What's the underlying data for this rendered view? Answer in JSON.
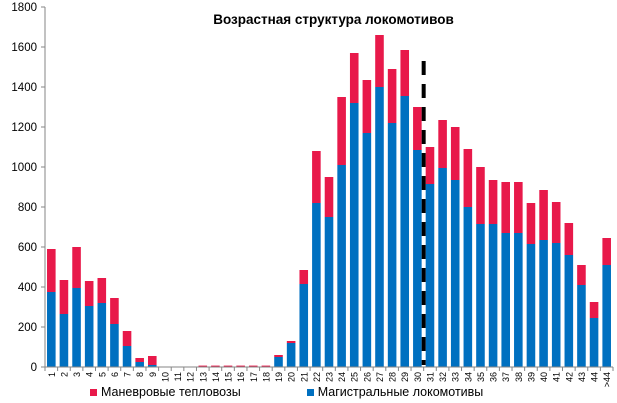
{
  "chart_data": {
    "type": "bar",
    "stacked": true,
    "title": "Возрастная структура локомотивов",
    "xlabel": "",
    "ylabel": "",
    "ylim": [
      0,
      1800
    ],
    "yticks": [
      0,
      200,
      400,
      600,
      800,
      1000,
      1200,
      1400,
      1600,
      1800
    ],
    "grid": false,
    "legend_position": "bottom",
    "categories": [
      "1",
      "2",
      "3",
      "4",
      "5",
      "6",
      "7",
      "8",
      "9",
      "10",
      "11",
      "12",
      "13",
      "14",
      "15",
      "16",
      "17",
      "18",
      "19",
      "20",
      "21",
      "22",
      "23",
      "24",
      "25",
      "26",
      "27",
      "28",
      "29",
      "30",
      "31",
      "32",
      "33",
      "34",
      "35",
      "36",
      "37",
      "38",
      "39",
      "40",
      "41",
      "42",
      "43",
      "44",
      ">44"
    ],
    "series": [
      {
        "name": "Магистральные локомотивы",
        "color": "#0070C0",
        "values": [
          375,
          265,
          395,
          305,
          320,
          215,
          105,
          25,
          10,
          2,
          0,
          0,
          2,
          2,
          2,
          2,
          2,
          2,
          50,
          120,
          415,
          820,
          750,
          1010,
          1320,
          1170,
          1400,
          1220,
          1355,
          1085,
          915,
          995,
          935,
          800,
          715,
          715,
          670,
          670,
          615,
          635,
          620,
          560,
          410,
          245,
          510
        ]
      },
      {
        "name": "Маневровые тепловозы",
        "color": "#E8194A",
        "values": [
          215,
          170,
          205,
          125,
          125,
          130,
          75,
          20,
          45,
          0,
          0,
          0,
          5,
          5,
          5,
          5,
          5,
          5,
          10,
          10,
          70,
          260,
          200,
          340,
          250,
          265,
          260,
          270,
          230,
          215,
          185,
          240,
          265,
          290,
          285,
          220,
          255,
          255,
          205,
          250,
          205,
          160,
          100,
          80,
          135
        ]
      }
    ],
    "annotations": [
      {
        "type": "dashed-vertical-line",
        "after_category": "30"
      }
    ]
  }
}
